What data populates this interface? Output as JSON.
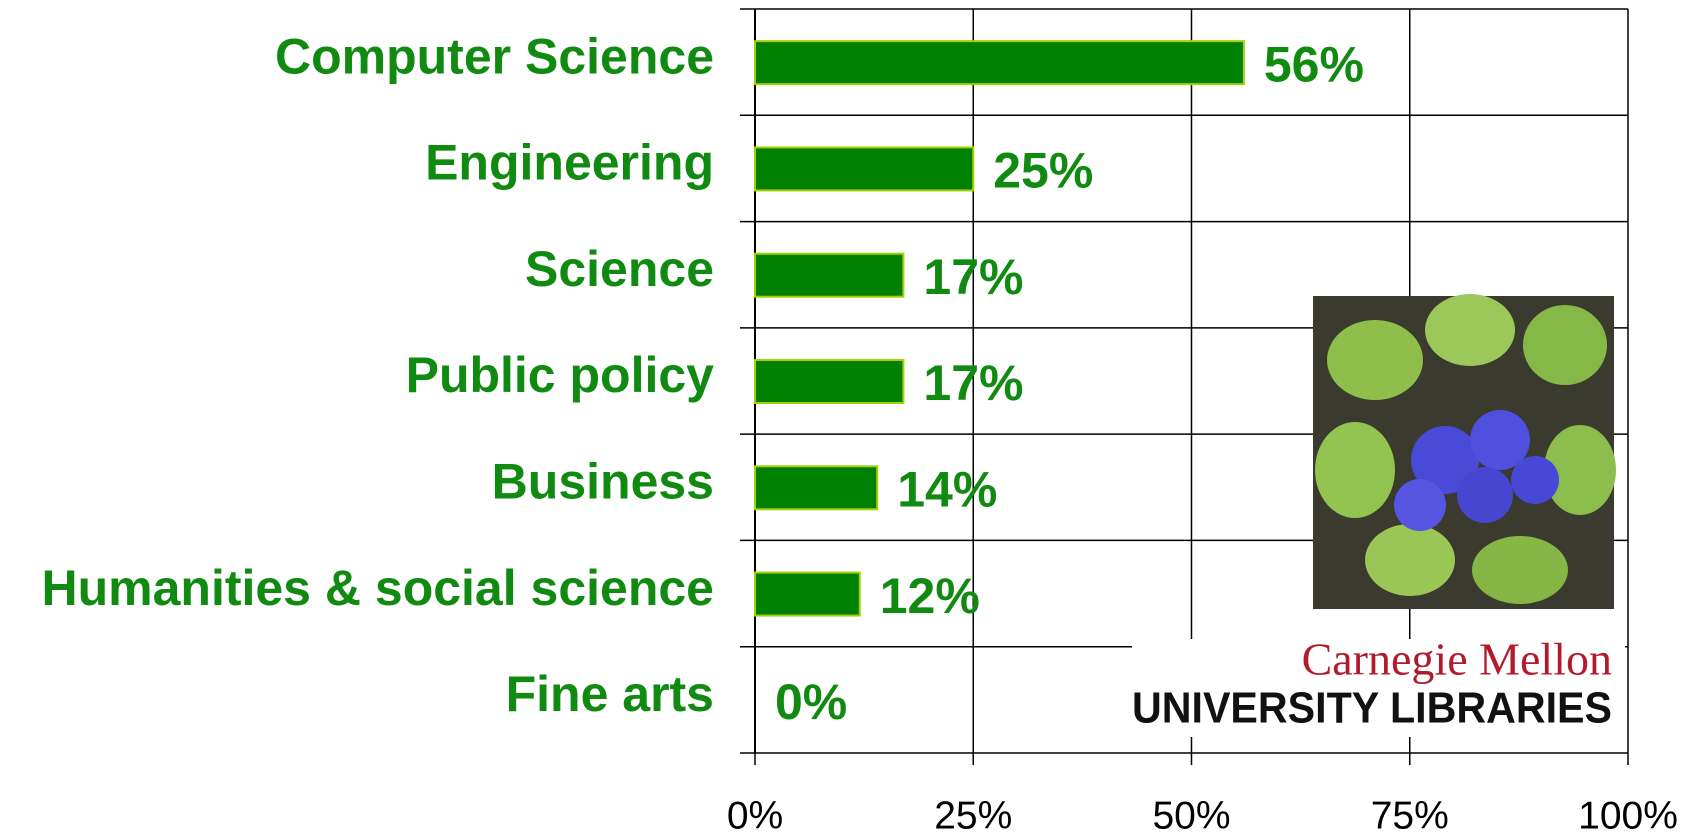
{
  "chart_data": {
    "type": "barh",
    "categories": [
      "Computer Science",
      "Engineering",
      "Science",
      "Public policy",
      "Business",
      "Humanities & social science",
      "Fine arts"
    ],
    "values": [
      56,
      25,
      17,
      17,
      14,
      12,
      0
    ],
    "value_labels": [
      "56%",
      "25%",
      "17%",
      "17%",
      "14%",
      "12%",
      "0%"
    ],
    "color": "#008000",
    "xlim": [
      0,
      100
    ],
    "xticks": [
      {
        "value": 0,
        "label": "0%"
      },
      {
        "value": 25,
        "label": "25%"
      },
      {
        "value": 50,
        "label": "50%"
      },
      {
        "value": 75,
        "label": "75%"
      },
      {
        "value": 100,
        "label": "100%"
      }
    ],
    "grid": true
  },
  "logo": {
    "line1": "Carnegie Mellon",
    "line2": "UNIVERSITY LIBRARIES"
  }
}
